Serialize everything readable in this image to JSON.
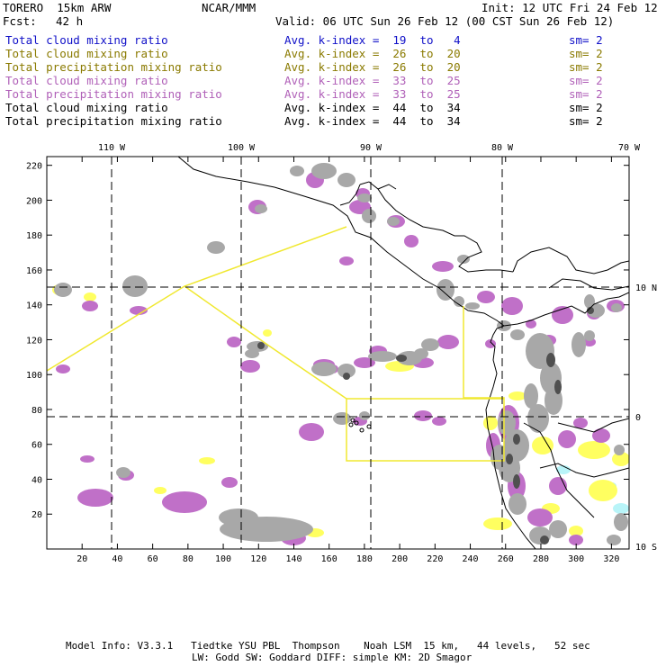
{
  "header": {
    "model_name": "TORERO  15km ARW",
    "org": "NCAR/MMM",
    "init": "Init: 12 UTC Fri 24 Feb 12",
    "fcst_label": "Fcst:",
    "fcst_value": "42 h",
    "valid": "Valid: 06 UTC Sun 26 Feb 12 (00 CST Sun 26 Feb 12)"
  },
  "legend_rows": [
    {
      "field": "Total cloud mixing ratio",
      "index": "Avg. k-index =  19  to   4",
      "sm": "sm= 2",
      "color": "#1010c8"
    },
    {
      "field": "Total cloud mixing ratio",
      "index": "Avg. k-index =  26  to  20",
      "sm": "sm= 2",
      "color": "#8a7a00"
    },
    {
      "field": "Total precipitation mixing ratio",
      "index": "Avg. k-index =  26  to  20",
      "sm": "sm= 2",
      "color": "#8a7a00"
    },
    {
      "field": "Total cloud mixing ratio",
      "index": "Avg. k-index =  33  to  25",
      "sm": "sm= 2",
      "color": "#b060b8"
    },
    {
      "field": "Total precipitation mixing ratio",
      "index": "Avg. k-index =  33  to  25",
      "sm": "sm= 2",
      "color": "#b060b8"
    },
    {
      "field": "Total cloud mixing ratio",
      "index": "Avg. k-index =  44  to  34",
      "sm": "sm= 2",
      "color": "#000000"
    },
    {
      "field": "Total precipitation mixing ratio",
      "index": "Avg. k-index =  44  to  34",
      "sm": "sm= 2",
      "color": "#000000"
    }
  ],
  "map": {
    "lon_labels": [
      "110 W",
      "100 W",
      "90 W",
      "80 W",
      "70 W"
    ],
    "lat_labels": [
      "10 N",
      "0",
      "10 S"
    ],
    "x_ticks": [
      "20",
      "40",
      "60",
      "80",
      "100",
      "120",
      "140",
      "160",
      "180",
      "200",
      "220",
      "240",
      "260",
      "280",
      "300",
      "320"
    ],
    "y_ticks": [
      "20",
      "40",
      "60",
      "80",
      "100",
      "120",
      "140",
      "160",
      "180",
      "200",
      "220"
    ],
    "colors": {
      "gray_cloud": "#a8a8a8",
      "dark_cloud": "#505050",
      "purple": "#c070c8",
      "yellow": "#ffff60",
      "cyan": "#b8f4f8",
      "domain_line": "#f0e830",
      "coast": "#000000"
    }
  },
  "footer": {
    "line1": "Model Info: V3.3.1   Tiedtke YSU PBL  Thompson    Noah LSM  15 km,   44 levels,   52 sec",
    "line2": "LW: Godd SW: Goddard DIFF: simple KM: 2D Smagor"
  }
}
